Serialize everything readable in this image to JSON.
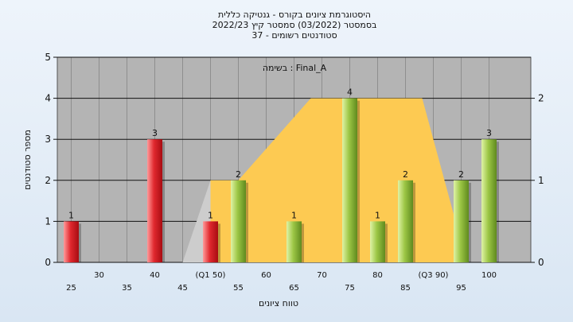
{
  "chart_data": {
    "type": "bar",
    "title_lines": [
      "היסטוגרמת ציונים בקורס - גנטיקה כללית",
      "בסמסטר  (03/2022)  סמסטר קיץ 2022/23",
      "סטודנטים רשומים - 37"
    ],
    "annotation": "בשימה : Final_A",
    "xlabel": "טווח ציונים",
    "ylabel": "מספר סטודנטים",
    "ylim": [
      0,
      5
    ],
    "yticks": [
      "0",
      "1",
      "2",
      "3",
      "4",
      "5"
    ],
    "y2lim": [
      0,
      2.5
    ],
    "y2ticks": [
      "0",
      "1",
      "2"
    ],
    "grid": true,
    "x_ticks": [
      {
        "x": 25,
        "label": "25",
        "row": 2
      },
      {
        "x": 30,
        "label": "30",
        "row": 1
      },
      {
        "x": 35,
        "label": "35",
        "row": 2
      },
      {
        "x": 40,
        "label": "40",
        "row": 1
      },
      {
        "x": 45,
        "label": "45",
        "row": 2
      },
      {
        "x": 50,
        "label": "(Q1 50)",
        "row": 1
      },
      {
        "x": 55,
        "label": "55",
        "row": 2
      },
      {
        "x": 60,
        "label": "60",
        "row": 1
      },
      {
        "x": 65,
        "label": "65",
        "row": 2
      },
      {
        "x": 70,
        "label": "70",
        "row": 1
      },
      {
        "x": 75,
        "label": "75",
        "row": 2
      },
      {
        "x": 80,
        "label": "80",
        "row": 1
      },
      {
        "x": 85,
        "label": "85",
        "row": 2
      },
      {
        "x": 90,
        "label": "(Q3 90)",
        "row": 1
      },
      {
        "x": 95,
        "label": "95",
        "row": 2
      },
      {
        "x": 100,
        "label": "100",
        "row": 1
      }
    ],
    "bars": [
      {
        "x": 25,
        "value": 1,
        "label": "1",
        "color": "red"
      },
      {
        "x": 40,
        "value": 3,
        "label": "3",
        "color": "red"
      },
      {
        "x": 50,
        "value": 1,
        "label": "1",
        "color": "red"
      },
      {
        "x": 55,
        "value": 2,
        "label": "2",
        "color": "green"
      },
      {
        "x": 65,
        "value": 1,
        "label": "1",
        "color": "green"
      },
      {
        "x": 75,
        "value": 4,
        "label": "4",
        "color": "green"
      },
      {
        "x": 80,
        "value": 1,
        "label": "1",
        "color": "green"
      },
      {
        "x": 85,
        "value": 2,
        "label": "2",
        "color": "green"
      },
      {
        "x": 95,
        "value": 2,
        "label": "2",
        "color": "green"
      },
      {
        "x": 100,
        "value": 3,
        "label": "3",
        "color": "green"
      }
    ],
    "background_area_gray": [
      [
        45,
        0
      ],
      [
        50,
        2
      ],
      [
        55,
        2
      ],
      [
        55,
        0
      ]
    ],
    "background_area_yellow": [
      [
        50,
        0
      ],
      [
        50,
        2
      ],
      [
        55,
        2
      ],
      [
        68,
        4
      ],
      [
        88,
        4
      ],
      [
        96,
        0
      ]
    ],
    "colors": {
      "plot_bg": "#b4b4b4",
      "area_yellow": "#fdca52",
      "area_gray": "#cdcdcd",
      "red_light": "#ff8b8b",
      "red_dark": "#c8141c",
      "green_light": "#d8ee9a",
      "green_dark": "#6d9a25"
    }
  }
}
